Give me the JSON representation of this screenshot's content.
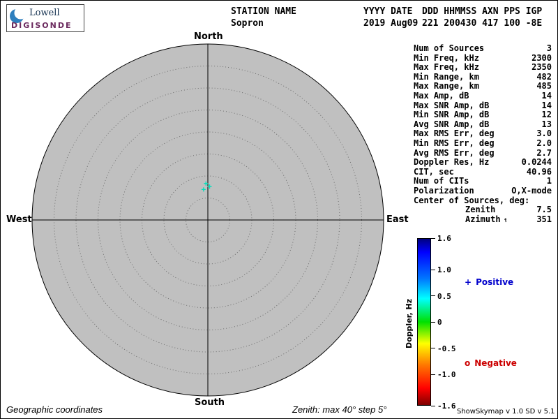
{
  "logo": {
    "brand": "Lowell",
    "product": "DIGISONDE"
  },
  "header": {
    "columns": [
      {
        "label": "STATION NAME",
        "value": "Sopron"
      },
      {
        "label": "YYYY DATE",
        "value": "2019 Aug09"
      },
      {
        "label": "DDD HHMMSS AXN PPS IGP",
        "value": "221 200430 417 100 -8E"
      }
    ]
  },
  "compass": {
    "north": "North",
    "south": "South",
    "east": "East",
    "west": "West"
  },
  "stats": {
    "rows": [
      {
        "label": "Num of Sources",
        "value": "3"
      },
      {
        "label": "Min Freq, kHz",
        "value": "2300"
      },
      {
        "label": "Max Freq, kHz",
        "value": "2350"
      },
      {
        "label": "Min Range, km",
        "value": "482"
      },
      {
        "label": "Max Range, km",
        "value": "485"
      },
      {
        "label": "Max Amp, dB",
        "value": "14"
      },
      {
        "label": "Max SNR Amp, dB",
        "value": "14"
      },
      {
        "label": "Min SNR Amp, dB",
        "value": "12"
      },
      {
        "label": "Avg SNR Amp, dB",
        "value": "13"
      },
      {
        "label": "Max RMS Err, deg",
        "value": "3.0"
      },
      {
        "label": "Min RMS Err, deg",
        "value": "2.0"
      },
      {
        "label": "Avg RMS Err, deg",
        "value": "2.7"
      },
      {
        "label": "Doppler Res, Hz",
        "value": "0.0244"
      },
      {
        "label": "CIT, sec",
        "value": "40.96"
      },
      {
        "label": "Num of CITs",
        "value": "1"
      },
      {
        "label": "Polarization",
        "value": "O,X-mode"
      },
      {
        "label": "Center of Sources, deg:",
        "value": ""
      },
      {
        "label": "Zenith",
        "value": "7.5",
        "indent": true
      },
      {
        "label": "Azimuth",
        "value": "351",
        "indent": true,
        "arrow": "↑"
      }
    ]
  },
  "colorbar": {
    "label": "Doppler, Hz",
    "min": -1.6,
    "max": 1.6,
    "ticks": [
      1.6,
      1.0,
      0.5,
      0,
      -0.5,
      -1.0,
      -1.6
    ],
    "tick_labels": [
      "1.6",
      "1.0",
      "0.5",
      "0",
      "-0.5",
      "-1.0",
      "-1.6"
    ]
  },
  "legend": {
    "positive": {
      "marker": "+",
      "label": "Positive",
      "color": "#0000cc"
    },
    "negative": {
      "marker": "o",
      "label": "Negative",
      "color": "#cc0000"
    }
  },
  "footer": {
    "left": "Geographic coordinates",
    "center": "Zenith: max 40°  step 5°",
    "right": "ShowSkymap v 1.0  SD v 5.1"
  },
  "chart_data": {
    "type": "scatter",
    "projection": "polar_skymap",
    "coordinate_system": "Geographic coordinates",
    "zenith_max_deg": 40,
    "zenith_step_deg": 5,
    "rings": 8,
    "doppler_range_hz": [
      -1.6,
      1.6
    ],
    "num_sources": 3,
    "center_of_sources": {
      "zenith_deg": 7.5,
      "azimuth_deg": 351
    },
    "points": [
      {
        "zenith_deg": 8.3,
        "azimuth_deg": 357,
        "doppler_hz": 0.4,
        "polarity": "positive"
      },
      {
        "zenith_deg": 7.6,
        "azimuth_deg": 3,
        "doppler_hz": 0.35,
        "polarity": "positive"
      },
      {
        "zenith_deg": 7.0,
        "azimuth_deg": 352,
        "doppler_hz": 0.45,
        "polarity": "positive"
      }
    ],
    "colors": {
      "plot_fill": "#c0c0c0",
      "point_color": "#00e0bc"
    }
  }
}
